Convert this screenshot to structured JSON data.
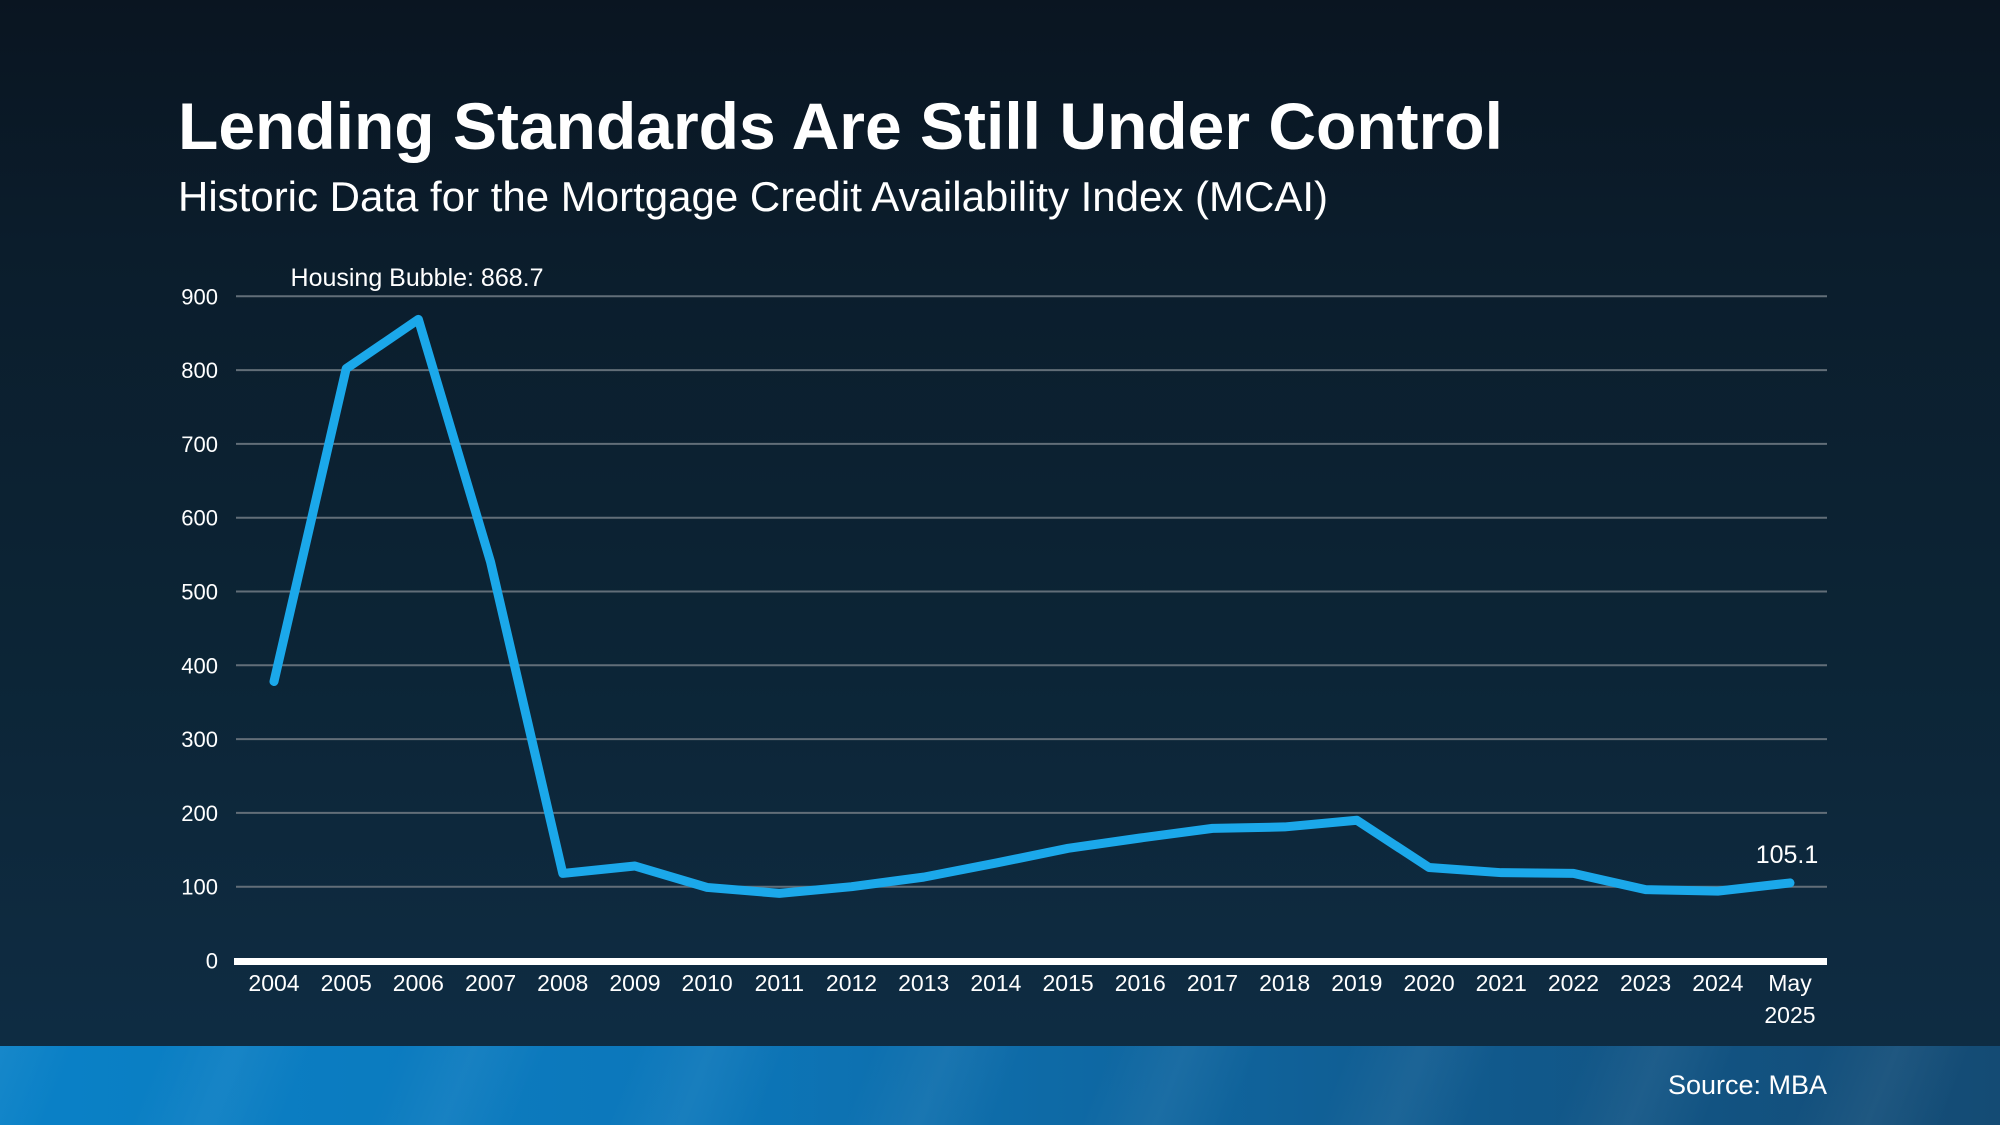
{
  "header": {
    "title": "Lending Standards Are Still Under Control",
    "subtitle": "Historic Data for the Mortgage Credit Availability Index (MCAI)"
  },
  "chart_data": {
    "type": "line",
    "title": "Historic Data for the Mortgage Credit Availability Index (MCAI)",
    "categories": [
      "2004",
      "2005",
      "2006",
      "2007",
      "2008",
      "2009",
      "2010",
      "2011",
      "2012",
      "2013",
      "2014",
      "2015",
      "2016",
      "2017",
      "2018",
      "2019",
      "2020",
      "2021",
      "2022",
      "2023",
      "2024",
      "May 2025"
    ],
    "series": [
      {
        "name": "MCAI",
        "values": [
          378,
          802,
          868.7,
          540,
          118,
          128,
          99,
          91,
          100,
          113,
          132,
          152,
          166,
          179,
          181,
          190,
          126,
          119,
          118,
          96,
          94,
          105.1
        ]
      }
    ],
    "yticks": [
      0,
      100,
      200,
      300,
      400,
      500,
      600,
      700,
      800,
      900
    ],
    "ylim": [
      0,
      900
    ],
    "xlabel": "",
    "ylabel": "",
    "grid": true,
    "legend": "none",
    "annotations": [
      {
        "text": "Housing Bubble: 868.7",
        "target_category": "2006",
        "target_value": 868.7
      },
      {
        "text": "105.1",
        "target_category": "May 2025",
        "target_value": 105.1
      }
    ]
  },
  "footer": {
    "source": "Source: MBA"
  },
  "colors": {
    "line": "#1ba8ea",
    "grid": "#626e78",
    "axis": "#ffffff",
    "text": "#ffffff",
    "footer_bar_left": "#0a81c7",
    "footer_bar_right": "#144b74"
  }
}
